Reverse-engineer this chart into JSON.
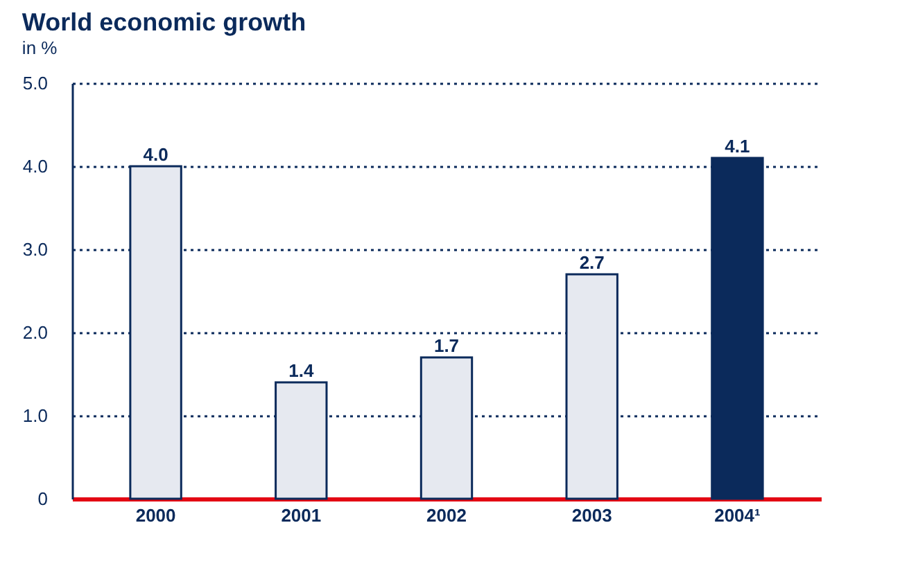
{
  "chart_data": {
    "type": "bar",
    "title": "World economic growth",
    "subtitle": "in %",
    "categories": [
      "2000",
      "2001",
      "2002",
      "2003",
      "2004¹"
    ],
    "values": [
      4.0,
      1.4,
      1.7,
      2.7,
      4.1
    ],
    "colors": [
      "#e6e9f0",
      "#e6e9f0",
      "#e6e9f0",
      "#e6e9f0",
      "#0b2a5b"
    ],
    "ylim": [
      0,
      5
    ],
    "yticks": [
      0,
      {
        "value": 1,
        "label": "1.0"
      },
      {
        "value": 2,
        "label": "2.0"
      },
      {
        "value": 3,
        "label": "3.0"
      },
      {
        "value": 4,
        "label": "4.0"
      },
      {
        "value": 5,
        "label": "5.0"
      }
    ],
    "value_labels": [
      "4.0",
      "1.4",
      "1.7",
      "2.7",
      "4.1"
    ],
    "grid": "y"
  }
}
